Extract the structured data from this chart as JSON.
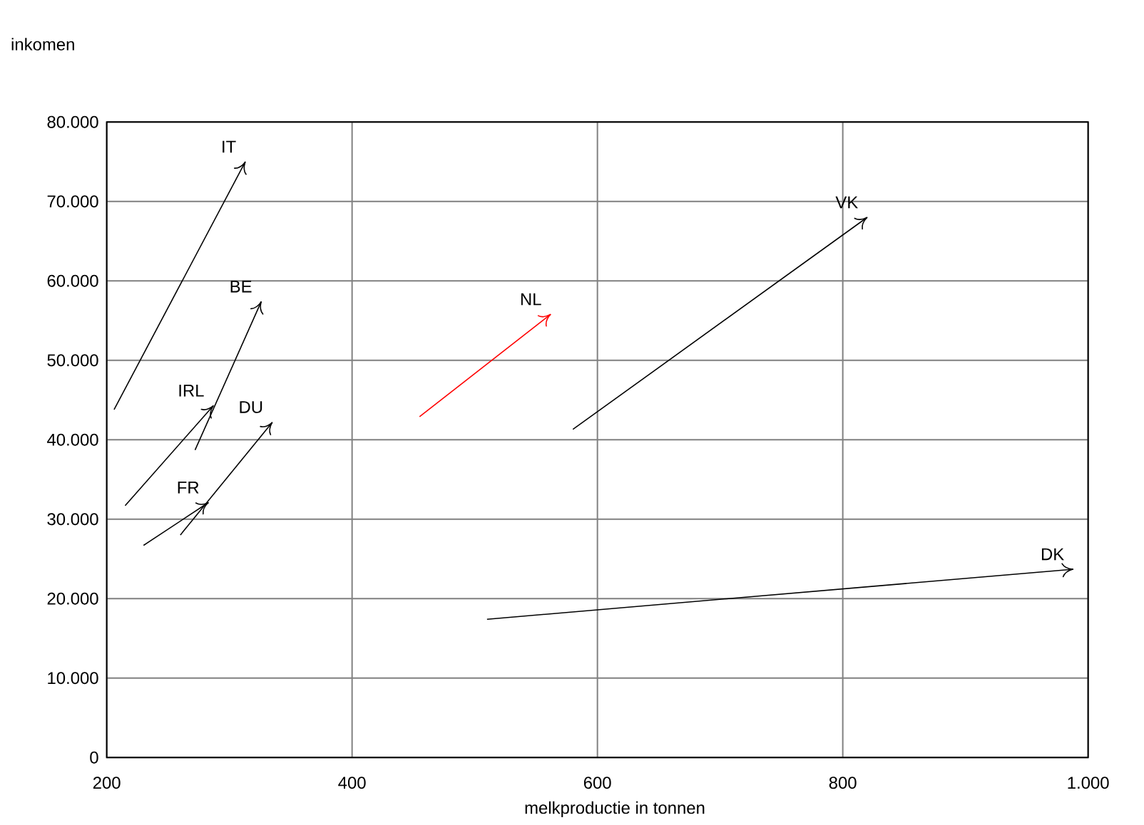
{
  "chart_data": {
    "type": "line",
    "xlabel": "melkproductie in tonnen",
    "ylabel": "inkomen",
    "xlim": [
      200,
      1000
    ],
    "xticks": [
      200,
      400,
      600,
      800,
      {
        "value": 1000,
        "label": "1.000"
      }
    ],
    "ylim": [
      0,
      80000
    ],
    "yticks": [
      0,
      {
        "value": 10000,
        "label": "10.000"
      },
      {
        "value": 20000,
        "label": "20.000"
      },
      {
        "value": 30000,
        "label": "30.000"
      },
      {
        "value": 40000,
        "label": "40.000"
      },
      {
        "value": 50000,
        "label": "50.000"
      },
      {
        "value": 60000,
        "label": "60.000"
      },
      {
        "value": 70000,
        "label": "70.000"
      },
      {
        "value": 80000,
        "label": "80.000"
      }
    ],
    "grid": true,
    "marker": "none",
    "line_style": "solid",
    "series": [
      {
        "name": "IT",
        "color": "#000000",
        "x": [
          206,
          313
        ],
        "values": [
          43800,
          75000
        ]
      },
      {
        "name": "BE",
        "color": "#000000",
        "x": [
          272,
          326
        ],
        "values": [
          38700,
          57400
        ]
      },
      {
        "name": "IRL",
        "color": "#000000",
        "x": [
          215,
          287
        ],
        "values": [
          31700,
          44300
        ]
      },
      {
        "name": "DU",
        "color": "#000000",
        "x": [
          260,
          335
        ],
        "values": [
          28000,
          42200
        ]
      },
      {
        "name": "FR",
        "color": "#000000",
        "x": [
          230,
          283
        ],
        "values": [
          26700,
          32100
        ]
      },
      {
        "name": "NL",
        "color": "#ff0000",
        "x": [
          455,
          562
        ],
        "values": [
          42900,
          55800
        ]
      },
      {
        "name": "VK",
        "color": "#000000",
        "x": [
          580,
          820
        ],
        "values": [
          41300,
          68000
        ]
      },
      {
        "name": "DK",
        "color": "#000000",
        "x": [
          510,
          988
        ],
        "values": [
          17400,
          23700
        ]
      }
    ]
  }
}
